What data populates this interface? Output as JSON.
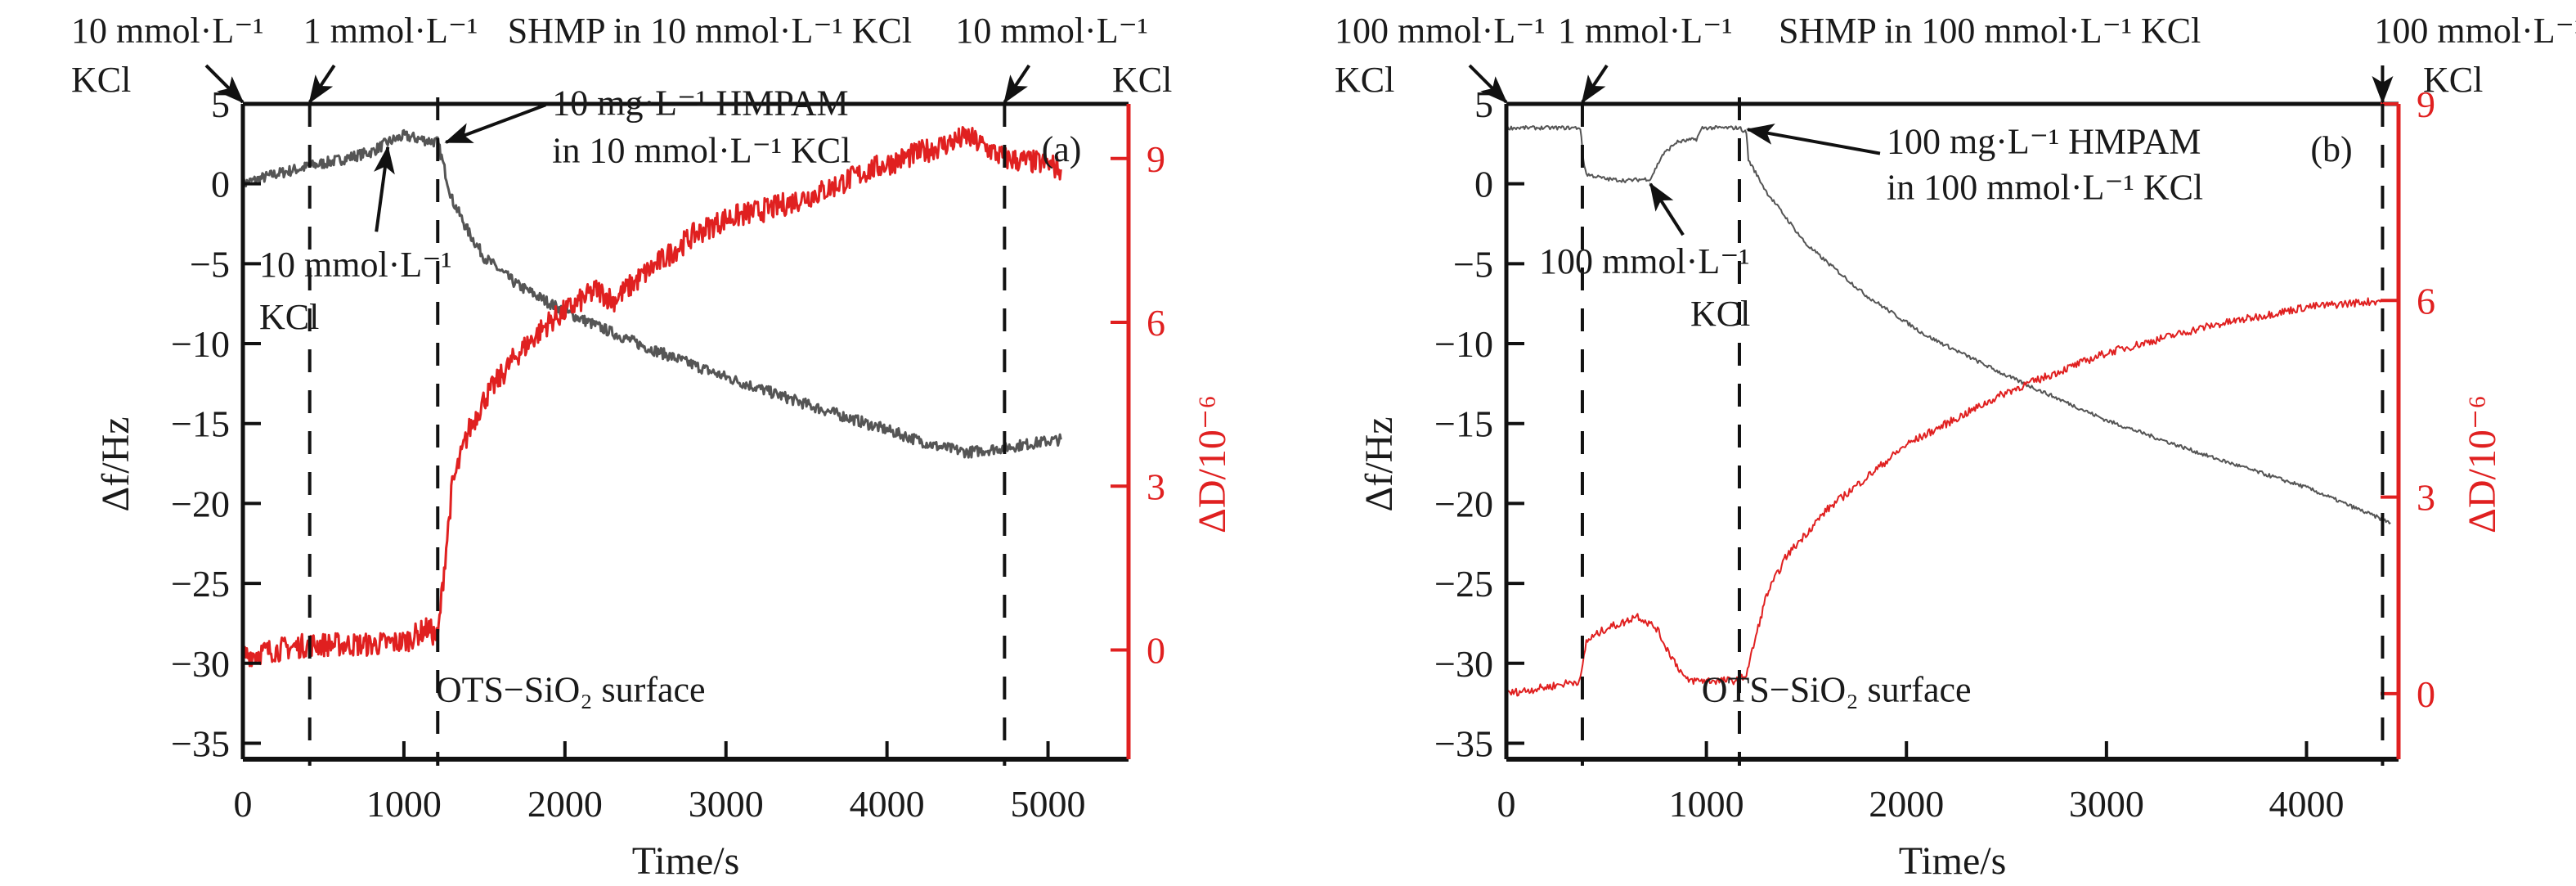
{
  "colors": {
    "frequency": "#555555",
    "dissipation": "#e02020",
    "axis": "#111111",
    "dissipation_axis": "#e02020"
  },
  "chart_data": [
    {
      "type": "line",
      "panel_label": "(a)",
      "xlabel": "Time/s",
      "ylabel": "Δf/Hz",
      "y2label": "ΔD/10⁻⁶",
      "xlim": [
        0,
        5500
      ],
      "ylim": [
        -36,
        5
      ],
      "y2lim": [
        -2,
        10
      ],
      "x_ticks": [
        0,
        1000,
        2000,
        3000,
        4000,
        5000
      ],
      "y_ticks": [
        5,
        0,
        -5,
        -10,
        -15,
        -20,
        -25,
        -30,
        -35
      ],
      "y2_ticks": [
        0,
        3,
        6,
        9
      ],
      "grid": false,
      "surface_label": "OTS−SiO₂ surface",
      "event_lines": [
        {
          "t": 0,
          "label_line1": "10 mmol·L⁻¹",
          "label_line2": "KCl",
          "dashed": false
        },
        {
          "t": 415,
          "label_line1": "1 mmol·L⁻¹",
          "label_line2": "SHMP in 10 mmol·L⁻¹ KCl",
          "dashed": true
        },
        {
          "t": 1210,
          "label_line1": "10 mg·L⁻¹ HMPAM",
          "label_line2": "in 10 mmol·L⁻¹ KCl",
          "dashed": true
        },
        {
          "t": 4730,
          "label_line1": "10 mmol·L⁻¹",
          "label_line2": "KCl",
          "dashed": true
        }
      ],
      "inner_annotation": {
        "t": 900,
        "line1": "10 mmol·L⁻¹",
        "line2": "KCl"
      },
      "series": [
        {
          "name": "Δf",
          "axis": "left",
          "x": [
            0,
            200,
            415,
            600,
            800,
            900,
            1000,
            1100,
            1210,
            1300,
            1400,
            1500,
            1700,
            2000,
            2200,
            2500,
            3000,
            3500,
            4000,
            4300,
            4500,
            4730,
            5000,
            5080
          ],
          "values": [
            0,
            0.6,
            1.1,
            1.5,
            2.0,
            2.6,
            3.0,
            2.8,
            2.6,
            -1.0,
            -3.0,
            -4.6,
            -6.3,
            -8.0,
            -8.9,
            -10.2,
            -12.1,
            -13.8,
            -15.4,
            -16.4,
            -16.8,
            -16.5,
            -16.1,
            -16.0
          ]
        },
        {
          "name": "ΔD",
          "axis": "right",
          "x": [
            0,
            200,
            415,
            600,
            800,
            1000,
            1150,
            1210,
            1250,
            1300,
            1400,
            1500,
            1700,
            1900,
            2100,
            2200,
            2300,
            2500,
            2800,
            3000,
            3300,
            3600,
            3900,
            4200,
            4500,
            4730,
            5000,
            5080
          ],
          "values": [
            -0.1,
            0.0,
            0.1,
            0.1,
            0.1,
            0.15,
            0.4,
            0.2,
            1.5,
            3.0,
            4.0,
            4.6,
            5.4,
            6.0,
            6.4,
            6.6,
            6.4,
            6.9,
            7.6,
            7.9,
            8.1,
            8.4,
            8.8,
            9.1,
            9.4,
            9.0,
            8.9,
            8.8
          ]
        }
      ]
    },
    {
      "type": "line",
      "panel_label": "(b)",
      "xlabel": "Time/s",
      "ylabel": "Δf/Hz",
      "y2label": "ΔD/10⁻⁶",
      "xlim": [
        0,
        4460
      ],
      "ylim": [
        -36,
        5
      ],
      "y2lim": [
        -1,
        9
      ],
      "x_ticks": [
        0,
        1000,
        2000,
        3000,
        4000
      ],
      "y_ticks": [
        5,
        0,
        -5,
        -10,
        -15,
        -20,
        -25,
        -30,
        -35
      ],
      "y2_ticks": [
        0,
        3,
        6,
        9
      ],
      "grid": false,
      "surface_label": "OTS−SiO₂ surface",
      "event_lines": [
        {
          "t": 0,
          "label_line1": "100 mmol·L⁻¹",
          "label_line2": "KCl",
          "dashed": false
        },
        {
          "t": 380,
          "label_line1": "1 mmol·L⁻¹",
          "label_line2": "SHMP in 100 mmol·L⁻¹ KCl",
          "dashed": true
        },
        {
          "t": 1165,
          "label_line1": "100 mg·L⁻¹ HMPAM",
          "label_line2": "in 100 mmol·L⁻¹ KCl",
          "dashed": true
        },
        {
          "t": 4380,
          "label_line1": "100 mmol·L⁻¹",
          "label_line2": "KCl",
          "dashed": true
        }
      ],
      "inner_annotation": {
        "t": 720,
        "line1": "100 mmol·L⁻¹",
        "line2": "KCl"
      },
      "series": [
        {
          "name": "Δf",
          "axis": "left",
          "x": [
            0,
            200,
            370,
            385,
            400,
            500,
            600,
            700,
            720,
            780,
            850,
            950,
            980,
            1165,
            1200,
            1210,
            1300,
            1500,
            1800,
            2100,
            2500,
            3000,
            3500,
            4000,
            4380,
            4420
          ],
          "values": [
            3.5,
            3.5,
            3.5,
            1.5,
            0.6,
            0.3,
            0.2,
            0.3,
            0.3,
            1.8,
            2.6,
            2.8,
            3.5,
            3.5,
            3.2,
            1.5,
            -0.5,
            -3.8,
            -7.0,
            -9.5,
            -12.0,
            -14.8,
            -17.0,
            -19.0,
            -21.0,
            -21.2
          ]
        },
        {
          "name": "ΔD",
          "axis": "right",
          "x": [
            0,
            200,
            370,
            400,
            500,
            600,
            650,
            700,
            750,
            800,
            900,
            1000,
            1165,
            1200,
            1300,
            1400,
            1600,
            1800,
            2000,
            2500,
            3000,
            3500,
            4000,
            4380
          ],
          "values": [
            0.0,
            0.1,
            0.2,
            0.8,
            1.0,
            1.1,
            1.2,
            1.1,
            1.0,
            0.7,
            0.2,
            0.2,
            0.2,
            0.3,
            1.5,
            2.1,
            2.8,
            3.3,
            3.8,
            4.6,
            5.2,
            5.6,
            5.9,
            6.0
          ]
        }
      ]
    }
  ]
}
